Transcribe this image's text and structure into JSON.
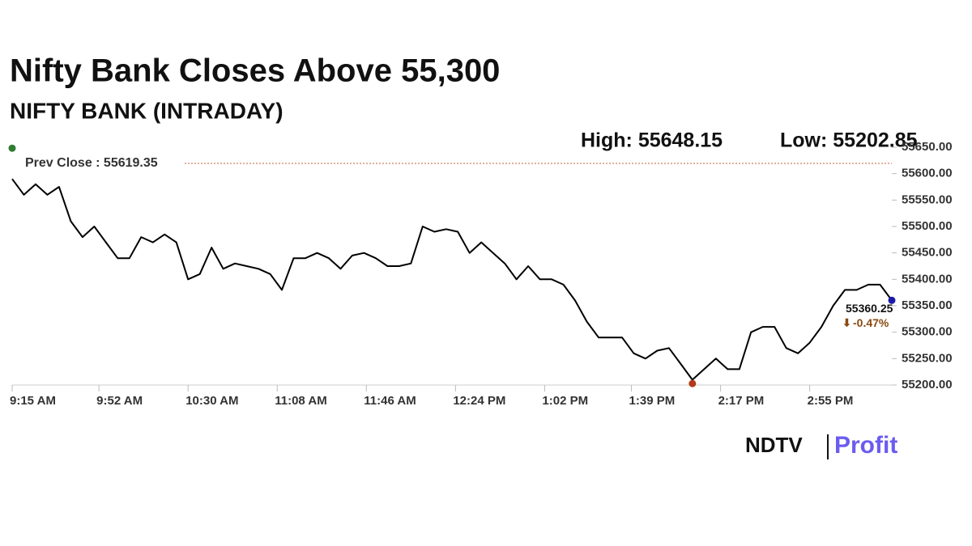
{
  "chart_data": {
    "type": "line",
    "title": "Nifty Bank Closes Above 55,300",
    "subtitle": "NIFTY BANK (INTRADAY)",
    "high": {
      "label": "High: 55648.15",
      "value": 55648.15,
      "x": "9:15 AM",
      "color": "#2e7d32"
    },
    "low": {
      "label": "Low: 55202.85",
      "value": 55202.85,
      "x": "2:05 PM",
      "color": "#b23a1a"
    },
    "prev_close": {
      "label": "Prev Close : 55619.35",
      "value": 55619.35,
      "color": "#c0603a"
    },
    "last": {
      "label": "55360.25",
      "value": 55360.25,
      "x": "3:30 PM",
      "change_label": "-0.47%",
      "color": "#1a1aa8"
    },
    "brand": [
      "NDTV",
      "Profit"
    ],
    "color": "#000000",
    "grid": false,
    "x": [
      "9:15 AM",
      "9:20 AM",
      "9:25 AM",
      "9:30 AM",
      "9:35 AM",
      "9:40 AM",
      "9:45 AM",
      "9:50 AM",
      "9:55 AM",
      "10:00 AM",
      "10:05 AM",
      "10:10 AM",
      "10:15 AM",
      "10:20 AM",
      "10:25 AM",
      "10:30 AM",
      "10:35 AM",
      "10:40 AM",
      "10:45 AM",
      "10:50 AM",
      "10:55 AM",
      "11:00 AM",
      "11:05 AM",
      "11:10 AM",
      "11:15 AM",
      "11:20 AM",
      "11:25 AM",
      "11:30 AM",
      "11:35 AM",
      "11:40 AM",
      "11:45 AM",
      "11:50 AM",
      "11:55 AM",
      "12:00 PM",
      "12:05 PM",
      "12:10 PM",
      "12:15 PM",
      "12:20 PM",
      "12:25 PM",
      "12:30 PM",
      "12:35 PM",
      "12:40 PM",
      "12:45 PM",
      "12:50 PM",
      "12:55 PM",
      "1:00 PM",
      "1:05 PM",
      "1:10 PM",
      "1:15 PM",
      "1:20 PM",
      "1:25 PM",
      "1:30 PM",
      "1:35 PM",
      "1:40 PM",
      "1:45 PM",
      "1:50 PM",
      "1:55 PM",
      "2:00 PM",
      "2:05 PM",
      "2:10 PM",
      "2:15 PM",
      "2:20 PM",
      "2:25 PM",
      "2:30 PM",
      "2:35 PM",
      "2:40 PM",
      "2:45 PM",
      "2:50 PM",
      "2:55 PM",
      "3:00 PM",
      "3:05 PM",
      "3:10 PM",
      "3:15 PM",
      "3:20 PM",
      "3:25 PM",
      "3:30 PM"
    ],
    "values": [
      55590,
      55560,
      55580,
      55560,
      55575,
      55510,
      55480,
      55500,
      55470,
      55440,
      55440,
      55480,
      55470,
      55485,
      55470,
      55400,
      55410,
      55460,
      55420,
      55430,
      55425,
      55420,
      55410,
      55380,
      55440,
      55440,
      55450,
      55440,
      55420,
      55445,
      55450,
      55440,
      55425,
      55425,
      55430,
      55500,
      55490,
      55495,
      55490,
      55450,
      55470,
      55450,
      55430,
      55400,
      55425,
      55400,
      55400,
      55390,
      55360,
      55320,
      55290,
      55290,
      55290,
      55260,
      55250,
      55265,
      55270,
      55240,
      55210,
      55230,
      55250,
      55230,
      55230,
      55300,
      55310,
      55310,
      55270,
      55260,
      55280,
      55310,
      55350,
      55380,
      55380,
      55390,
      55390,
      55360.25
    ],
    "xlim": [
      "9:15 AM",
      "3:30 PM"
    ],
    "xticks": [
      "9:15 AM",
      "9:52 AM",
      "10:30 AM",
      "11:08 AM",
      "11:46 AM",
      "12:24 PM",
      "1:02 PM",
      "1:39 PM",
      "2:17 PM",
      "2:55 PM"
    ],
    "ylim": [
      55200,
      55650
    ],
    "yticks": [
      {
        "value": 55200,
        "label": "55200.00"
      },
      {
        "value": 55250,
        "label": "55250.00"
      },
      {
        "value": 55300,
        "label": "55300.00"
      },
      {
        "value": 55350,
        "label": "55350.00"
      },
      {
        "value": 55400,
        "label": "55400.00"
      },
      {
        "value": 55450,
        "label": "55450.00"
      },
      {
        "value": 55500,
        "label": "55500.00"
      },
      {
        "value": 55550,
        "label": "55550.00"
      },
      {
        "value": 55600,
        "label": "55600.00"
      },
      {
        "value": 55650,
        "label": "55650.00"
      }
    ]
  }
}
